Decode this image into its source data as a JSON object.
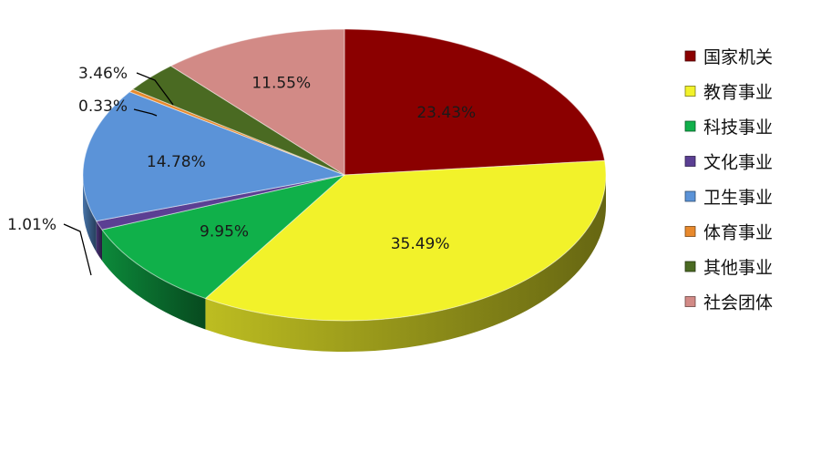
{
  "chart_data": {
    "type": "pie",
    "title": "",
    "legend_position": "right",
    "slices": [
      {
        "name": "国家机关",
        "value": 23.43,
        "label": "23.43%",
        "color": "#8b0000"
      },
      {
        "name": "教育事业",
        "value": 35.49,
        "label": "35.49%",
        "color": "#f2f22a"
      },
      {
        "name": "科技事业",
        "value": 9.95,
        "label": "9.95%",
        "color": "#10b04a"
      },
      {
        "name": "文化事业",
        "value": 1.01,
        "label": "1.01%",
        "color": "#5b3f93"
      },
      {
        "name": "卫生事业",
        "value": 14.78,
        "label": "14.78%",
        "color": "#5b93d8"
      },
      {
        "name": "体育事业",
        "value": 0.33,
        "label": "0.33%",
        "color": "#e8892c"
      },
      {
        "name": "其他事业",
        "value": 3.46,
        "label": "3.46%",
        "color": "#4a6a22"
      },
      {
        "name": "社会团体",
        "value": 11.55,
        "label": "11.55%",
        "color": "#d28a86"
      }
    ]
  }
}
